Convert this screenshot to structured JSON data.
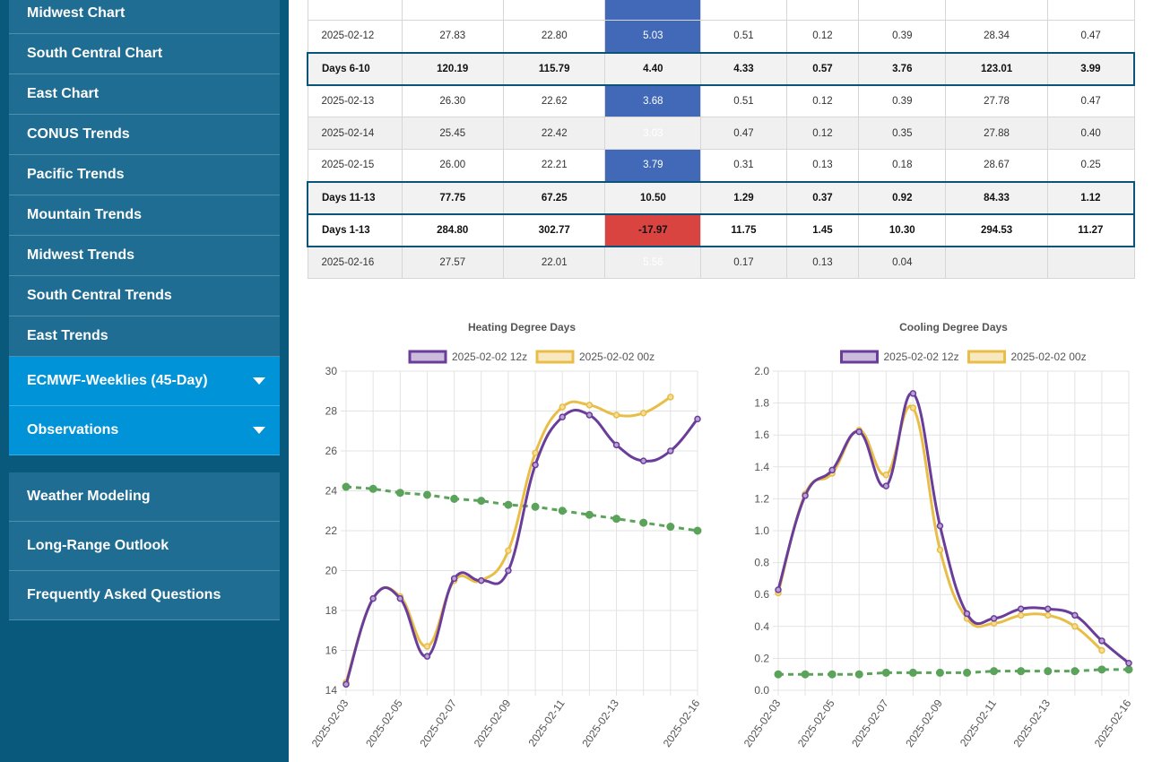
{
  "sidebar": {
    "items": [
      {
        "label": "Midwest Chart"
      },
      {
        "label": "South Central Chart"
      },
      {
        "label": "East Chart"
      },
      {
        "label": "CONUS Trends"
      },
      {
        "label": "Pacific Trends"
      },
      {
        "label": "Mountain Trends"
      },
      {
        "label": "Midwest Trends"
      },
      {
        "label": "South Central Trends"
      },
      {
        "label": "East Trends"
      }
    ],
    "expandable": [
      {
        "label": "ECMWF-Weeklies (45-Day)"
      },
      {
        "label": "Observations"
      }
    ],
    "bottom": [
      {
        "label": "Weather Modeling"
      },
      {
        "label": "Long-Range Outlook"
      },
      {
        "label": "Frequently Asked Questions"
      }
    ]
  },
  "table": {
    "rows": [
      {
        "kind": "day",
        "cells": [
          "2025-02-12",
          "27.83",
          "22.80",
          "5.03",
          "0.51",
          "0.12",
          "0.39",
          "28.34",
          "0.47"
        ]
      },
      {
        "kind": "sum",
        "cells": [
          "Days 6-10",
          "120.19",
          "115.79",
          "4.40",
          "4.33",
          "0.57",
          "3.76",
          "123.01",
          "3.99"
        ]
      },
      {
        "kind": "day",
        "cells": [
          "2025-02-13",
          "26.30",
          "22.62",
          "3.68",
          "0.51",
          "0.12",
          "0.39",
          "27.78",
          "0.47"
        ]
      },
      {
        "kind": "day",
        "cells": [
          "2025-02-14",
          "25.45",
          "22.42",
          "3.03",
          "0.47",
          "0.12",
          "0.35",
          "27.88",
          "0.40"
        ]
      },
      {
        "kind": "day",
        "cells": [
          "2025-02-15",
          "26.00",
          "22.21",
          "3.79",
          "0.31",
          "0.13",
          "0.18",
          "28.67",
          "0.25"
        ]
      },
      {
        "kind": "sum",
        "cells": [
          "Days 11-13",
          "77.75",
          "67.25",
          "10.50",
          "1.29",
          "0.37",
          "0.92",
          "84.33",
          "1.12"
        ]
      },
      {
        "kind": "sum",
        "cells": [
          "Days 1-13",
          "284.80",
          "302.77",
          "-17.97",
          "11.75",
          "1.45",
          "10.30",
          "294.53",
          "11.27"
        ]
      },
      {
        "kind": "day",
        "cells": [
          "2025-02-16",
          "27.57",
          "22.01",
          "5.56",
          "0.17",
          "0.13",
          "0.04",
          "",
          ""
        ]
      }
    ],
    "colors": {
      "positive": "#4169b7",
      "negative": "#d94441"
    }
  },
  "chart_data": [
    {
      "type": "line",
      "title": "Heating Degree Days",
      "x": [
        "2025-02-03",
        "2025-02-04",
        "2025-02-05",
        "2025-02-06",
        "2025-02-07",
        "2025-02-08",
        "2025-02-09",
        "2025-02-10",
        "2025-02-11",
        "2025-02-12",
        "2025-02-13",
        "2025-02-14",
        "2025-02-15",
        "2025-02-16"
      ],
      "xtick_labels": [
        "2025-02-03",
        "2025-02-05",
        "2025-02-07",
        "2025-02-09",
        "2025-02-11",
        "2025-02-13",
        "2025-02-16"
      ],
      "ylim": [
        14,
        30
      ],
      "yticks": [
        14,
        16,
        18,
        20,
        22,
        24,
        26,
        28,
        30
      ],
      "legend_position": "top",
      "grid": true,
      "series": [
        {
          "name": "2025-02-02 12z",
          "color": "#6a3d9a",
          "values": [
            14.3,
            18.6,
            18.6,
            15.7,
            19.6,
            19.5,
            20.0,
            25.3,
            27.7,
            27.8,
            26.3,
            25.5,
            26.0,
            27.6
          ]
        },
        {
          "name": "2025-02-02 00z",
          "color": "#e8be48",
          "values": [
            14.4,
            18.6,
            18.7,
            16.2,
            19.5,
            19.5,
            21.0,
            25.9,
            28.2,
            28.3,
            27.8,
            27.9,
            28.7,
            null
          ]
        },
        {
          "name": "",
          "color": "#5ba35b",
          "dashed": true,
          "values": [
            24.2,
            24.1,
            23.9,
            23.8,
            23.6,
            23.5,
            23.3,
            23.2,
            23.0,
            22.8,
            22.6,
            22.4,
            22.2,
            22.0
          ]
        }
      ]
    },
    {
      "type": "line",
      "title": "Cooling Degree Days",
      "x": [
        "2025-02-03",
        "2025-02-04",
        "2025-02-05",
        "2025-02-06",
        "2025-02-07",
        "2025-02-08",
        "2025-02-09",
        "2025-02-10",
        "2025-02-11",
        "2025-02-12",
        "2025-02-13",
        "2025-02-14",
        "2025-02-15",
        "2025-02-16"
      ],
      "xtick_labels": [
        "2025-02-03",
        "2025-02-05",
        "2025-02-07",
        "2025-02-09",
        "2025-02-11",
        "2025-02-13",
        "2025-02-16"
      ],
      "ylim": [
        0,
        2.0
      ],
      "yticks": [
        0,
        0.2,
        0.4,
        0.6,
        0.8,
        1.0,
        1.2,
        1.4,
        1.6,
        1.8,
        2.0
      ],
      "legend_position": "top",
      "grid": true,
      "series": [
        {
          "name": "2025-02-02 12z",
          "color": "#6a3d9a",
          "values": [
            0.63,
            1.22,
            1.38,
            1.62,
            1.28,
            1.86,
            1.03,
            0.48,
            0.45,
            0.51,
            0.51,
            0.47,
            0.31,
            0.17
          ]
        },
        {
          "name": "2025-02-02 00z",
          "color": "#e8be48",
          "values": [
            0.61,
            1.23,
            1.36,
            1.63,
            1.35,
            1.77,
            0.88,
            0.45,
            0.42,
            0.47,
            0.47,
            0.4,
            0.25,
            null
          ]
        },
        {
          "name": "",
          "color": "#5ba35b",
          "dashed": true,
          "values": [
            0.1,
            0.1,
            0.1,
            0.1,
            0.11,
            0.11,
            0.11,
            0.11,
            0.12,
            0.12,
            0.12,
            0.12,
            0.13,
            0.13
          ]
        }
      ]
    }
  ]
}
